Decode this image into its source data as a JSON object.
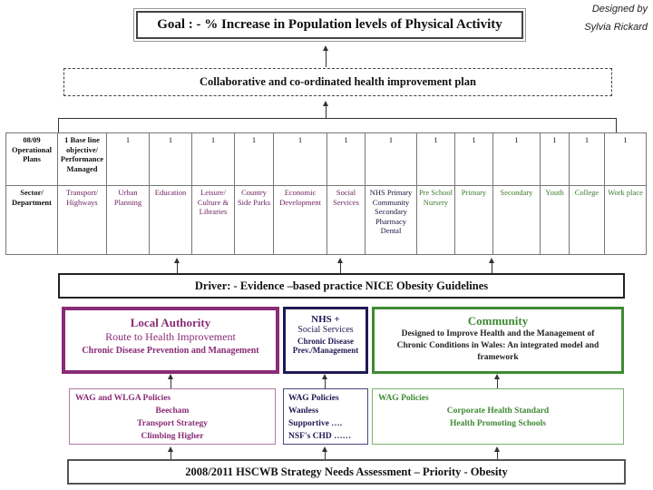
{
  "credit": {
    "line1": "Designed by",
    "line2": "Sylvia Rickard"
  },
  "goal": "Goal : -  %   Increase in Population levels of Physical Activity",
  "plan": "Collaborative and co-ordinated health improvement plan",
  "table": {
    "row1_label": "08/09 Operational Plans",
    "row1_values": [
      "1 Base line objective/ Performance Managed",
      "1",
      "1",
      "1",
      "1",
      "1",
      "1",
      "1",
      "1",
      "1",
      "1",
      "1",
      "1",
      "1"
    ],
    "row2_label": "Sector/ Department",
    "sectors": [
      "Transport/ Highways",
      "Urban Planning",
      "Education",
      "Leisure/ Culture & Libraries",
      "Country Side Parks",
      "Economic Development",
      "Social Services",
      "NHS Primary Community Secondary Pharmacy Dental",
      "Pre School Nursery",
      "Primary",
      "Secondary",
      "Youth",
      "College",
      "Work place"
    ]
  },
  "driver": "Driver: - Evidence –based practice NICE Obesity Guidelines",
  "la": {
    "title": "Local Authority",
    "sub": "Route to Health Improvement",
    "detail": "Chronic Disease Prevention and Management"
  },
  "nhs": {
    "title": "NHS +",
    "sub": "Social Services",
    "detail1": "Chronic Disease",
    "detail2": "Prev./Management"
  },
  "community": {
    "title": "Community",
    "detail": "Designed to Improve Health and the Management of Chronic Conditions in Wales: An integrated model and framework"
  },
  "la_policies": {
    "l1": "WAG and WLGA Policies",
    "l2": "Beecham",
    "l3": "Transport Strategy",
    "l4": "Climbing Higher"
  },
  "nhs_policies": {
    "l1": "WAG Policies",
    "l2": "Wanless",
    "l3": "Supportive ….",
    "l4": "NSF's CHD ……"
  },
  "com_policies": {
    "l1": "WAG Policies",
    "l2": "Corporate Health Standard",
    "l3": "Health Promoting Schools"
  },
  "needs": "2008/2011 HSCWB Strategy Needs Assessment – Priority - Obesity"
}
